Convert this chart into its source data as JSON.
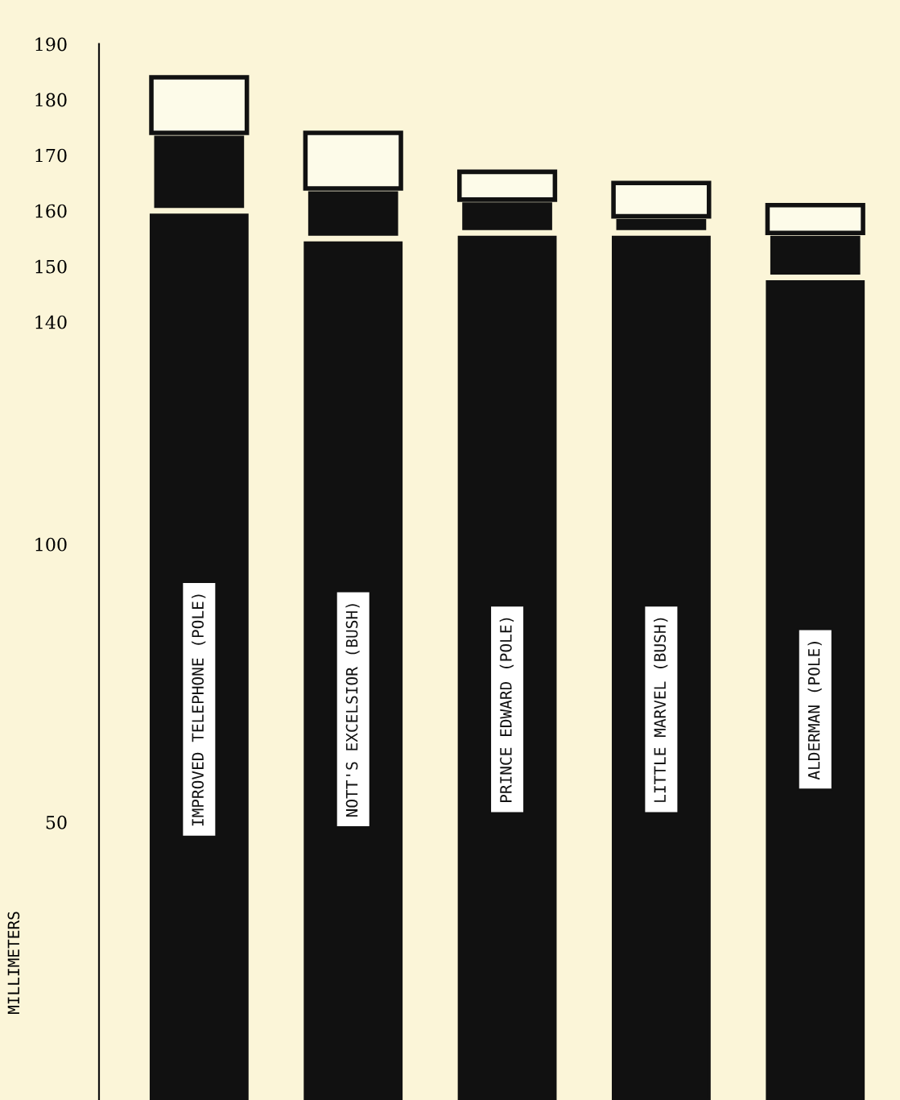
{
  "chart_data": {
    "type": "bar",
    "stacked": true,
    "ylabel": "MILLIMETERS",
    "categories": [
      "IMPROVED TELEPHONE (POLE)",
      "NOTT'S EXCELSIOR (BUSH)",
      "PRINCE EDWARD (POLE)",
      "LITTLE MARVEL (BUSH)",
      "ALDERMAN (POLE)"
    ],
    "series": [
      {
        "color": "#111111",
        "values": [
          160,
          155,
          156,
          156,
          148
        ]
      },
      {
        "color": "#111111",
        "values": [
          14,
          9,
          6,
          3,
          8
        ]
      },
      {
        "color": "#fdfbe9",
        "values": [
          10,
          10,
          5,
          6,
          5
        ]
      }
    ],
    "ylim": [
      0,
      190
    ],
    "yticks": [
      50,
      100,
      140,
      150,
      160,
      170,
      180,
      190
    ],
    "grid": false
  }
}
